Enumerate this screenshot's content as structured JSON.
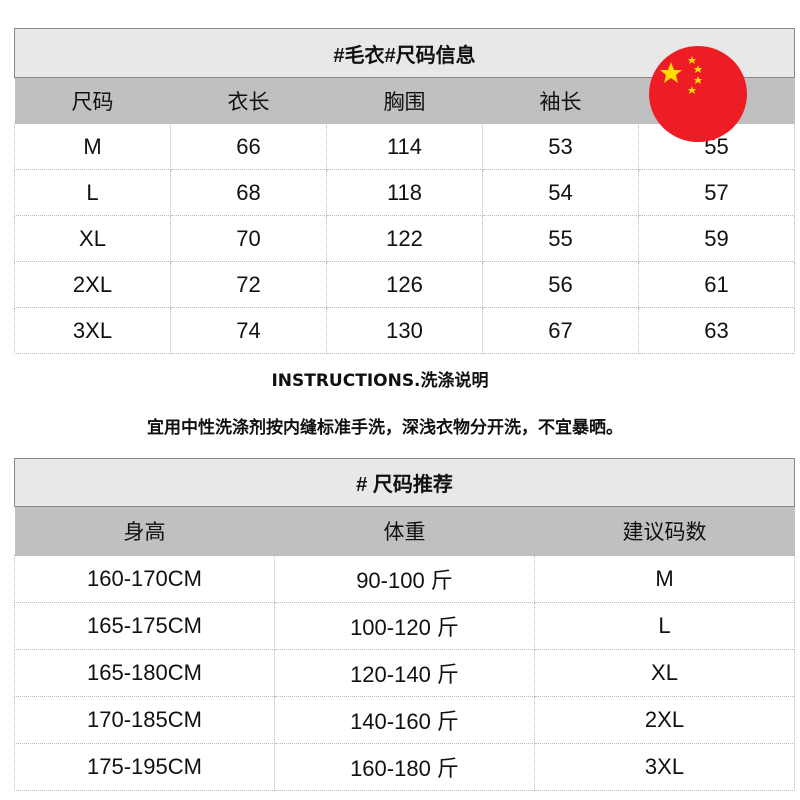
{
  "size_table": {
    "title": "#毛衣#尺码信息",
    "headers": [
      "尺码",
      "衣长",
      "胸围",
      "袖长",
      ""
    ],
    "rows": [
      [
        "M",
        "66",
        "114",
        "53",
        "55"
      ],
      [
        "L",
        "68",
        "118",
        "54",
        "57"
      ],
      [
        "XL",
        "70",
        "122",
        "55",
        "59"
      ],
      [
        "2XL",
        "72",
        "126",
        "56",
        "61"
      ],
      [
        "3XL",
        "74",
        "130",
        "67",
        "63"
      ]
    ]
  },
  "instructions": {
    "title": "INSTRUCTIONS.洗涤说明",
    "text": "宜用中性洗涤剂按内缝标准手洗，深浅衣物分开洗，不宜暴晒。"
  },
  "recommend_table": {
    "title": "# 尺码推荐",
    "headers": [
      "身高",
      "体重",
      "建议码数"
    ],
    "rows": [
      [
        "160-170CM",
        "90-100 斤",
        "M"
      ],
      [
        "165-175CM",
        "100-120 斤",
        "L"
      ],
      [
        "165-180CM",
        "120-140 斤",
        "XL"
      ],
      [
        "170-185CM",
        "140-160 斤",
        "2XL"
      ],
      [
        "175-195CM",
        "160-180 斤",
        "3XL"
      ]
    ]
  },
  "flag": {
    "icon": "china-flag-icon",
    "colors": {
      "red": "#ee1c25",
      "yellow": "#ffde00"
    }
  }
}
